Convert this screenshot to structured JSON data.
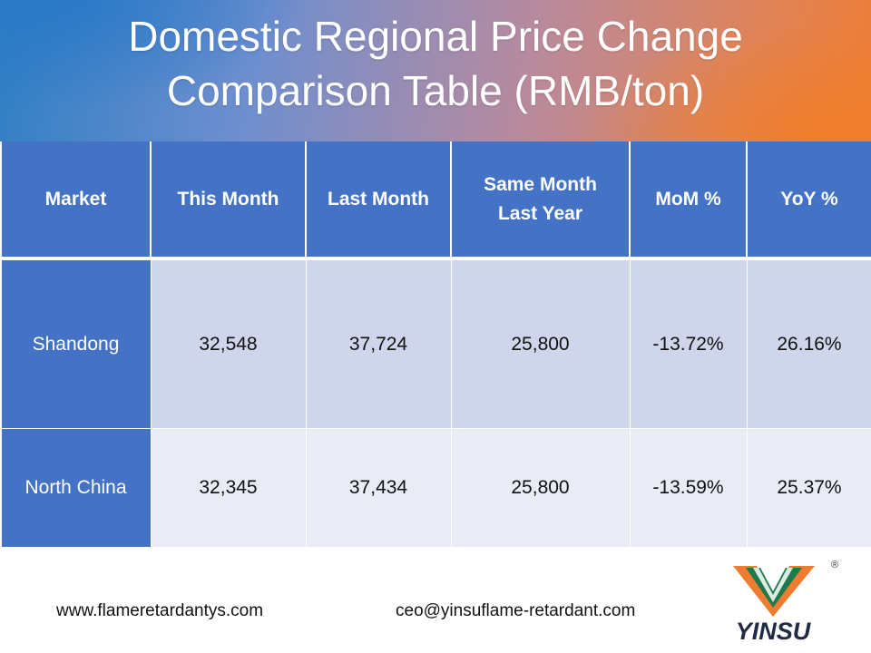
{
  "title_line1": "Domestic Regional Price Change",
  "title_line2": "Comparison Table (RMB/ton)",
  "table": {
    "headers": [
      "Market",
      "This Month",
      "Last Month",
      "Same Month Last Year",
      "MoM %",
      "YoY %"
    ],
    "header_same_month_line1": "Same Month",
    "header_same_month_line2": "Last Year",
    "rows": [
      {
        "market": "Shandong",
        "this_month": "32,548",
        "last_month": "37,724",
        "same_month_last_year": "25,800",
        "mom": "-13.72%",
        "yoy": "26.16%"
      },
      {
        "market": "North China",
        "this_month": "32,345",
        "last_month": "37,434",
        "same_month_last_year": "25,800",
        "mom": "-13.59%",
        "yoy": "25.37%"
      }
    ]
  },
  "footer": {
    "website": "www.flameretardantys.com",
    "email": "ceo@yinsuflame-retardant.com"
  },
  "logo": {
    "text": "YINSU",
    "registered_mark": "®"
  },
  "colors": {
    "header_blue": "#4472c4",
    "row1_bg": "#cfd5ea",
    "row2_bg": "#e9ebf5",
    "logo_orange": "#ee7d31",
    "logo_green": "#1f7a4a"
  }
}
